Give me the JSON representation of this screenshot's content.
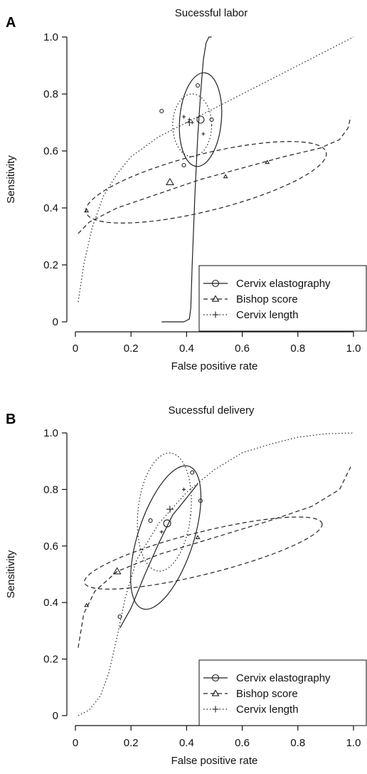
{
  "chart_data": [
    {
      "type": "scatter",
      "panel_label": "A",
      "title": "Sucessful labor",
      "xlabel": "False positive rate",
      "ylabel": "Sensitivity",
      "xlim": [
        0,
        1
      ],
      "ylim": [
        0,
        1
      ],
      "x_ticks": [
        "0",
        "0.2",
        "0.4",
        "0.6",
        "0.8",
        "1.0"
      ],
      "y_ticks": [
        "0",
        "0.2",
        "0.4",
        "0.6",
        "0.8",
        "1.0"
      ],
      "legend_position": "bottom-right",
      "series": [
        {
          "name": "Cervix elastography",
          "marker": "circle",
          "line_style": "solid",
          "summary_point": [
            0.45,
            0.71
          ],
          "study_points": [
            [
              0.31,
              0.74
            ],
            [
              0.44,
              0.83
            ],
            [
              0.39,
              0.55
            ],
            [
              0.49,
              0.71
            ]
          ],
          "sroc_curve": [
            [
              0.31,
              0
            ],
            [
              0.39,
              0
            ],
            [
              0.41,
              0.01
            ],
            [
              0.415,
              0.05
            ],
            [
              0.42,
              0.2
            ],
            [
              0.43,
              0.45
            ],
            [
              0.44,
              0.65
            ],
            [
              0.45,
              0.8
            ],
            [
              0.46,
              0.92
            ],
            [
              0.47,
              0.98
            ],
            [
              0.48,
              1.0
            ],
            [
              0.49,
              1.0
            ]
          ],
          "confidence_region": {
            "center": [
              0.45,
              0.71
            ],
            "rx": 0.075,
            "ry": 0.165,
            "angle": 5
          }
        },
        {
          "name": "Bishop score",
          "marker": "triangle",
          "line_style": "dashed",
          "summary_point": [
            0.34,
            0.49
          ],
          "study_points": [
            [
              0.04,
              0.39
            ],
            [
              0.54,
              0.51
            ],
            [
              0.69,
              0.56
            ]
          ],
          "sroc_curve": [
            [
              0.01,
              0.31
            ],
            [
              0.05,
              0.35
            ],
            [
              0.15,
              0.4
            ],
            [
              0.3,
              0.45
            ],
            [
              0.45,
              0.5
            ],
            [
              0.6,
              0.54
            ],
            [
              0.75,
              0.58
            ],
            [
              0.88,
              0.61
            ],
            [
              0.95,
              0.64
            ],
            [
              0.98,
              0.68
            ],
            [
              0.99,
              0.72
            ]
          ],
          "confidence_region": {
            "center": [
              0.47,
              0.49
            ],
            "rx": 0.445,
            "ry": 0.1,
            "angle": -14
          }
        },
        {
          "name": "Cervix length",
          "marker": "plus",
          "line_style": "dotted",
          "summary_point": [
            0.41,
            0.7
          ],
          "study_points": [
            [
              0.39,
              0.72
            ],
            [
              0.41,
              0.71
            ],
            [
              0.42,
              0.7
            ],
            [
              0.46,
              0.66
            ]
          ],
          "sroc_curve": [
            [
              0.01,
              0.07
            ],
            [
              0.03,
              0.2
            ],
            [
              0.06,
              0.33
            ],
            [
              0.1,
              0.44
            ],
            [
              0.15,
              0.52
            ],
            [
              0.2,
              0.58
            ],
            [
              0.3,
              0.65
            ],
            [
              0.4,
              0.7
            ],
            [
              0.5,
              0.75
            ],
            [
              0.6,
              0.8
            ],
            [
              0.7,
              0.85
            ],
            [
              0.8,
              0.9
            ],
            [
              0.9,
              0.95
            ],
            [
              1.0,
              1.0
            ]
          ],
          "confidence_region": {
            "center": [
              0.42,
              0.69
            ],
            "rx": 0.07,
            "ry": 0.11,
            "angle": 0
          }
        }
      ]
    },
    {
      "type": "scatter",
      "panel_label": "B",
      "title": "Sucessful delivery",
      "xlabel": "False positive rate",
      "ylabel": "Sensitivity",
      "xlim": [
        0,
        1
      ],
      "ylim": [
        0,
        1
      ],
      "x_ticks": [
        "0",
        "0.2",
        "0.4",
        "0.6",
        "0.8",
        "1.0"
      ],
      "y_ticks": [
        "0",
        "0.2",
        "0.4",
        "0.6",
        "0.8",
        "1.0"
      ],
      "legend_position": "bottom-right",
      "series": [
        {
          "name": "Cervix elastography",
          "marker": "circle",
          "line_style": "solid",
          "summary_point": [
            0.33,
            0.68
          ],
          "study_points": [
            [
              0.42,
              0.86
            ],
            [
              0.27,
              0.69
            ],
            [
              0.45,
              0.76
            ],
            [
              0.16,
              0.35
            ]
          ],
          "sroc_curve": [
            [
              0.16,
              0.31
            ],
            [
              0.2,
              0.38
            ],
            [
              0.25,
              0.5
            ],
            [
              0.3,
              0.61
            ],
            [
              0.35,
              0.71
            ],
            [
              0.4,
              0.77
            ],
            [
              0.44,
              0.82
            ]
          ],
          "confidence_region": {
            "center": [
              0.325,
              0.63
            ],
            "rx": 0.1,
            "ry": 0.265,
            "angle": 18
          }
        },
        {
          "name": "Bishop score",
          "marker": "triangle",
          "line_style": "dashed",
          "summary_point": [
            0.15,
            0.51
          ],
          "study_points": [
            [
              0.04,
              0.39
            ],
            [
              0.44,
              0.63
            ]
          ],
          "sroc_curve": [
            [
              0.01,
              0.24
            ],
            [
              0.03,
              0.36
            ],
            [
              0.07,
              0.44
            ],
            [
              0.15,
              0.51
            ],
            [
              0.3,
              0.57
            ],
            [
              0.5,
              0.63
            ],
            [
              0.7,
              0.69
            ],
            [
              0.85,
              0.74
            ],
            [
              0.95,
              0.8
            ],
            [
              0.99,
              0.88
            ]
          ],
          "confidence_region": {
            "center": [
              0.46,
              0.575
            ],
            "rx": 0.44,
            "ry": 0.075,
            "angle": -14
          }
        },
        {
          "name": "Cervix length",
          "marker": "plus",
          "line_style": "dotted",
          "summary_point": [
            0.34,
            0.73
          ],
          "study_points": [
            [
              0.39,
              0.8
            ],
            [
              0.31,
              0.65
            ]
          ],
          "sroc_curve": [
            [
              0.01,
              0.0
            ],
            [
              0.05,
              0.02
            ],
            [
              0.09,
              0.07
            ],
            [
              0.12,
              0.15
            ],
            [
              0.15,
              0.28
            ],
            [
              0.18,
              0.42
            ],
            [
              0.22,
              0.55
            ],
            [
              0.3,
              0.68
            ],
            [
              0.4,
              0.79
            ],
            [
              0.5,
              0.87
            ],
            [
              0.6,
              0.93
            ],
            [
              0.7,
              0.96
            ],
            [
              0.8,
              0.985
            ],
            [
              0.9,
              0.997
            ],
            [
              1.0,
              1.0
            ]
          ],
          "confidence_region": {
            "center": [
              0.32,
              0.72
            ],
            "rx": 0.095,
            "ry": 0.21,
            "angle": 6
          }
        }
      ]
    }
  ]
}
